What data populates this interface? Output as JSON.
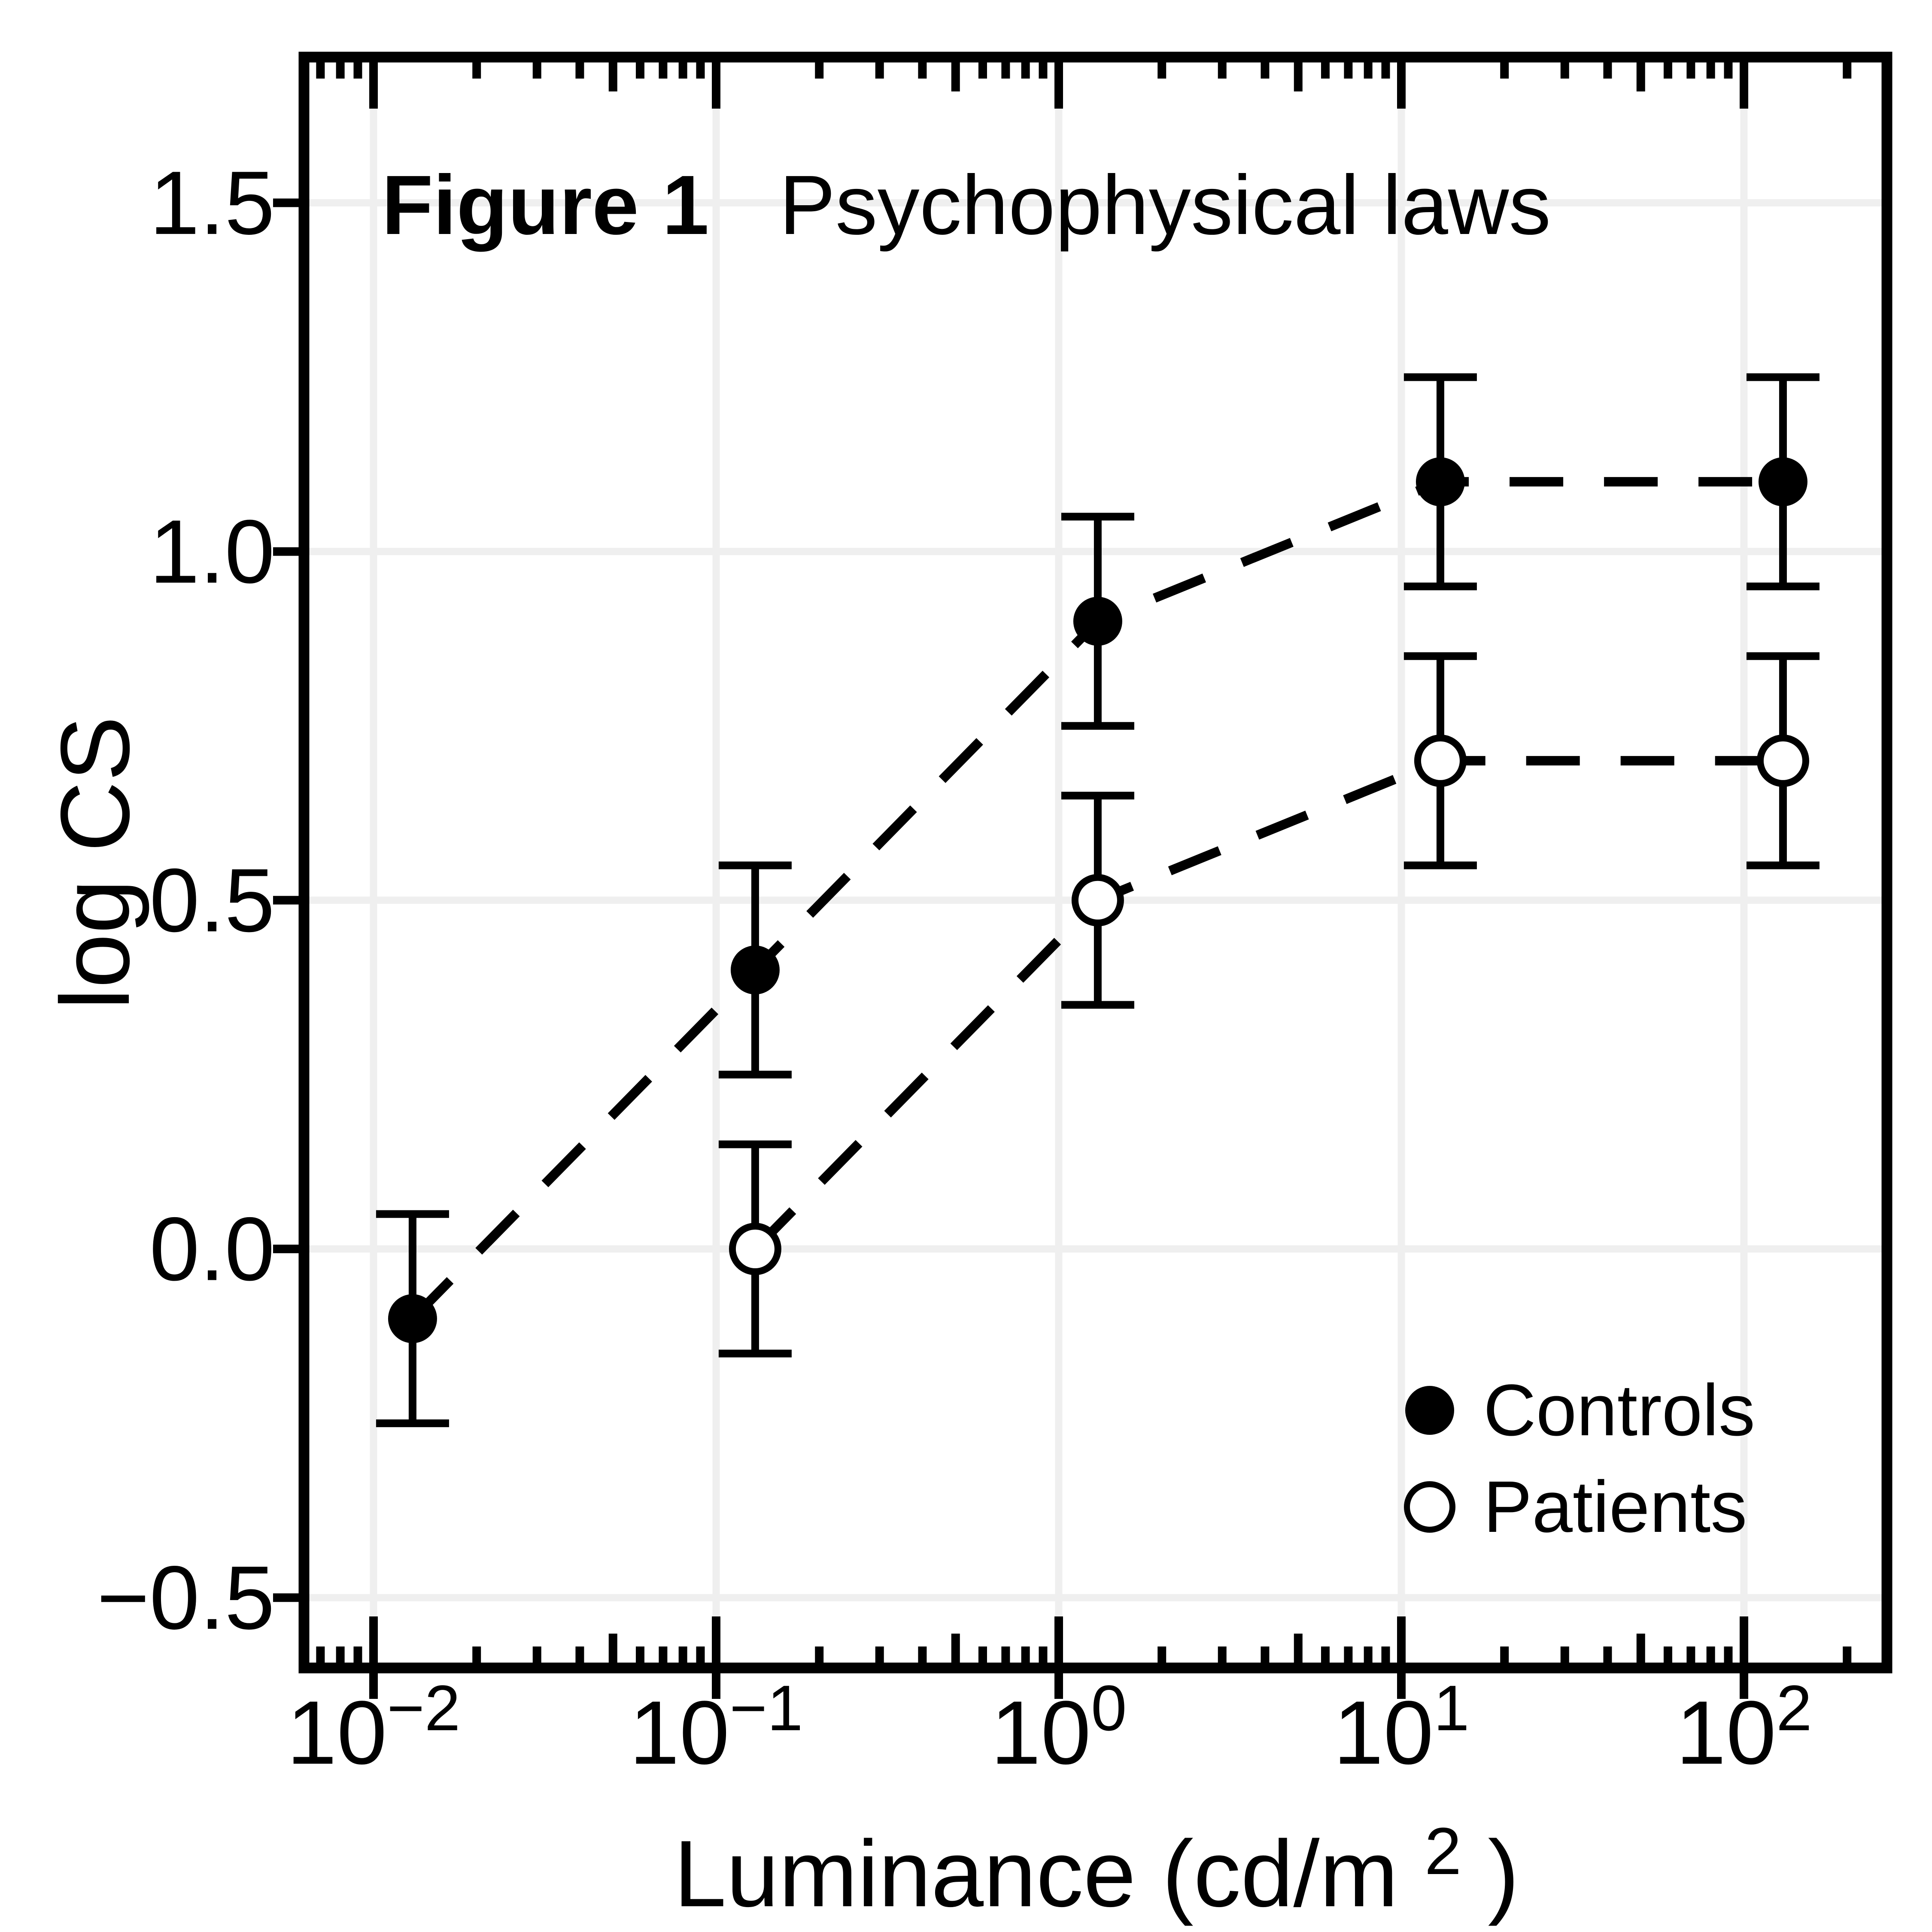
{
  "figure": {
    "title_bold": "Figure 1",
    "title_rest": "Psychophysical laws"
  },
  "axes": {
    "x": {
      "label_pre": "Luminance (cd/m",
      "label_sup": "2",
      "label_post": ")",
      "tick_base": "10",
      "tick_exponents": [
        -2,
        -1,
        0,
        1,
        2
      ]
    },
    "y": {
      "label": "log CS",
      "tick_labels": [
        "−0.5",
        "0.0",
        "0.5",
        "1.0",
        "1.5"
      ],
      "tick_values": [
        -0.5,
        0.0,
        0.5,
        1.0,
        1.5
      ]
    }
  },
  "legend": {
    "entries": [
      {
        "label": "Controls",
        "marker": "filled-circle"
      },
      {
        "label": "Patients",
        "marker": "open-circle"
      }
    ]
  },
  "chart_data": {
    "type": "line",
    "subtype": "scatter-line-errorbar",
    "title": "Figure 1  Psychophysical laws",
    "xlabel": "Luminance (cd/m²)",
    "ylabel": "log CS",
    "x_scale": "log10",
    "xlim_log10": [
      -2.203,
      2.42
    ],
    "ylim": [
      -0.6,
      1.71
    ],
    "grid": true,
    "legend_position": "inside-bottom-right",
    "line_style": "dashed",
    "x_tick_exponents": [
      -2,
      -1,
      0,
      1,
      2
    ],
    "y_ticks": [
      -0.5,
      0.0,
      0.5,
      1.0,
      1.5
    ],
    "series": [
      {
        "name": "Controls",
        "marker": "filled-circle",
        "x": [
          0.013,
          0.13,
          1.3,
          13,
          130
        ],
        "y": [
          -0.1,
          0.4,
          0.9,
          1.1,
          1.1
        ],
        "error": [
          0.15,
          0.15,
          0.15,
          0.15,
          0.15
        ]
      },
      {
        "name": "Patients",
        "marker": "open-circle",
        "x": [
          0.13,
          1.3,
          13,
          130
        ],
        "y": [
          0.0,
          0.5,
          0.7,
          0.7
        ],
        "error": [
          0.15,
          0.15,
          0.15,
          0.15
        ]
      }
    ],
    "colors": {
      "foreground": "#000000",
      "grid": "#EFEFEF",
      "background": "#FFFFFF"
    }
  }
}
